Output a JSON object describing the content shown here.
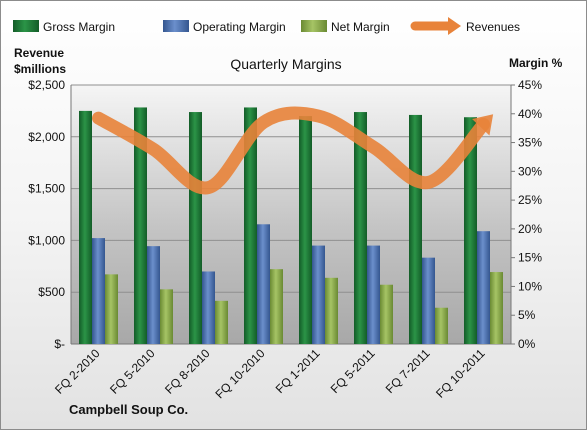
{
  "chart_data": {
    "type": "bar",
    "title": "Quarterly Margins",
    "left_axis_title": "Revenue\n$millions",
    "right_axis_title": "Margin %",
    "company": "Campbell Soup Co.",
    "categories": [
      "FQ 2-2010",
      "FQ 5-2010",
      "FQ 8-2010",
      "FQ 10-2010",
      "FQ 1-2011",
      "FQ 5-2011",
      "FQ 7-2011",
      "FQ 10-2011"
    ],
    "y_left": {
      "min": 0,
      "max": 2500,
      "ticks": [
        "$-",
        "$500",
        "$1,000",
        "$1,500",
        "$2,000",
        "$2,500"
      ]
    },
    "y_right": {
      "min": 0,
      "max": 45,
      "ticks": [
        "0%",
        "5%",
        "10%",
        "15%",
        "20%",
        "25%",
        "30%",
        "35%",
        "40%",
        "45%"
      ]
    },
    "series": [
      {
        "name": "Gross Margin",
        "color": "#1f7a3a",
        "axis": "right",
        "values": [
          40.5,
          41.1,
          40.3,
          41.1,
          39.6,
          40.3,
          39.8,
          39.4
        ]
      },
      {
        "name": "Operating Margin",
        "color": "#4a6fb0",
        "axis": "right",
        "values": [
          18.4,
          17.0,
          12.6,
          20.8,
          17.1,
          17.1,
          15.0,
          19.6
        ]
      },
      {
        "name": "Net Margin",
        "color": "#8aab4b",
        "axis": "right",
        "values": [
          12.1,
          9.5,
          7.5,
          13.0,
          11.5,
          10.3,
          6.3,
          12.5
        ]
      },
      {
        "name": "Revenues",
        "color": "#e8833a",
        "axis": "left",
        "type": "line",
        "values": [
          2180,
          1880,
          1510,
          2140,
          2200,
          1900,
          1560,
          2120
        ]
      }
    ],
    "legend": "top"
  }
}
